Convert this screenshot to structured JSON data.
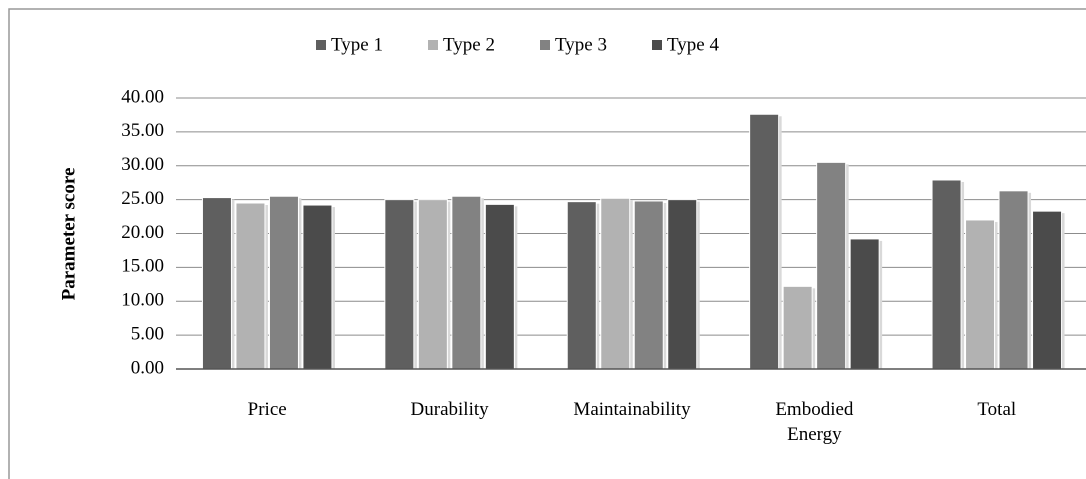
{
  "chart_data": {
    "type": "bar",
    "y_label": "Parameter score",
    "categories": [
      "Price",
      "Durability",
      "Maintainability",
      "Embodied Energy",
      "Total"
    ],
    "series": [
      {
        "name": "Type 1",
        "color": "#5f5f5f",
        "values": [
          25.3,
          25.0,
          24.7,
          37.6,
          27.9
        ]
      },
      {
        "name": "Type 2",
        "color": "#b2b2b2",
        "values": [
          24.5,
          25.0,
          25.2,
          12.2,
          22.0
        ]
      },
      {
        "name": "Type 3",
        "color": "#828282",
        "values": [
          25.5,
          25.5,
          24.8,
          30.5,
          26.3
        ]
      },
      {
        "name": "Type 4",
        "color": "#4b4b4b",
        "values": [
          24.2,
          24.3,
          25.0,
          19.2,
          23.3
        ]
      }
    ],
    "ylim": [
      0,
      40
    ],
    "yticks": [
      {
        "value": 0,
        "label": "0.00"
      },
      {
        "value": 5,
        "label": "5.00"
      },
      {
        "value": 10,
        "label": "10.00"
      },
      {
        "value": 15,
        "label": "15.00"
      },
      {
        "value": 20,
        "label": "20.00"
      },
      {
        "value": 25,
        "label": "25.00"
      },
      {
        "value": 30,
        "label": "30.00"
      },
      {
        "value": 35,
        "label": "35.00"
      },
      {
        "value": 40,
        "label": "40.00"
      }
    ],
    "grid": true,
    "legend": "top"
  }
}
